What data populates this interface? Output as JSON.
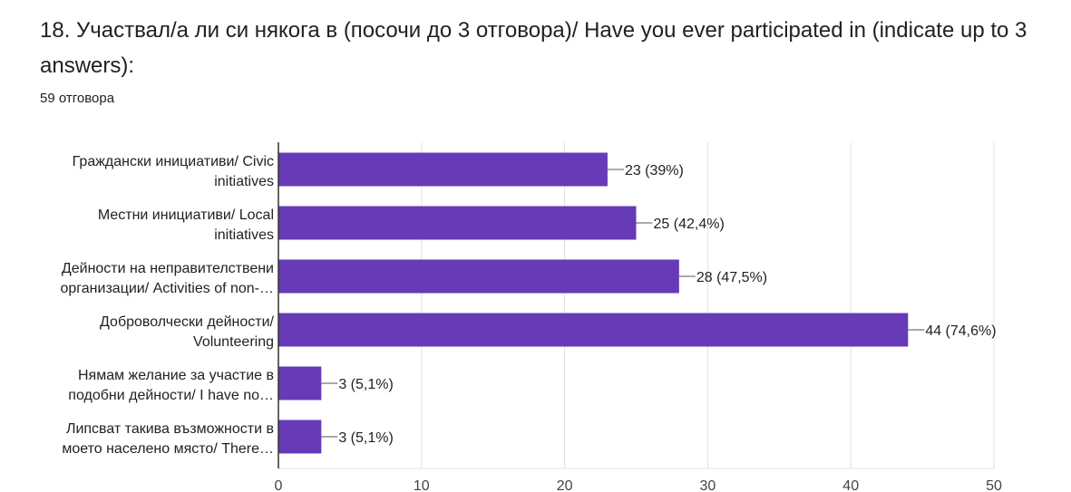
{
  "header": {
    "question": "18. Участвал/а ли си някога в (посочи до 3 отговора)/ Have you ever participated in (indicate up to 3 answers):",
    "responses": "59 отговора"
  },
  "colors": {
    "bar": "#673ab7",
    "grid": "#e0e0e0",
    "axis": "#333333"
  },
  "chart_data": {
    "type": "bar",
    "orientation": "horizontal",
    "title": "",
    "xlabel": "",
    "ylabel": "",
    "xlim": [
      0,
      50
    ],
    "xticks": [
      0,
      10,
      20,
      30,
      40,
      50
    ],
    "grid": true,
    "categories": [
      [
        "Граждански инициативи/ Civic",
        "initiatives"
      ],
      [
        "Местни инициативи/ Local",
        "initiatives"
      ],
      [
        "Дейности на неправителствени",
        "организации/ Activities of non-…"
      ],
      [
        "Доброволчески дейности/",
        "Volunteering"
      ],
      [
        "Нямам желание за участие в",
        "подобни дейности/ I have no…"
      ],
      [
        "Липсват такива възможности в",
        "моето населено място/ There…"
      ]
    ],
    "values": [
      23,
      25,
      28,
      44,
      3,
      3
    ],
    "data_labels": [
      "23 (39%)",
      "25 (42,4%)",
      "28 (47,5%)",
      "44 (74,6%)",
      "3 (5,1%)",
      "3 (5,1%)"
    ]
  }
}
